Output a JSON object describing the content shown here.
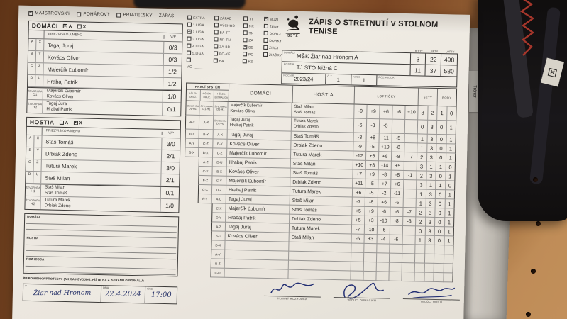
{
  "scene": {
    "tag_text": "Tréner"
  },
  "form": {
    "type_row": {
      "options": [
        {
          "label": "MAJSTROVSKÝ",
          "checked": true
        },
        {
          "label": "POHÁROVÝ",
          "checked": false
        },
        {
          "label": "PRIATEĽSKÝ",
          "checked": false
        }
      ],
      "suffix": "ZÁPAS"
    },
    "brand": {
      "org": "SSTZ",
      "title": "ZÁPIS O STRETNUTÍ V STOLNOM TENISE"
    },
    "league": {
      "columns": [
        [
          {
            "label": "EXTRA",
            "checked": false
          },
          {
            "label": "1.LIGA",
            "checked": false
          },
          {
            "label": "2.LIGA",
            "checked": true
          },
          {
            "label": "3.LIGA",
            "checked": false
          },
          {
            "label": "4.LIGA",
            "checked": false
          },
          {
            "label": "5.LIGA",
            "checked": false
          },
          {
            "label": "",
            "checked": false
          }
        ],
        [
          {
            "label": "ZÁPAD",
            "checked": false
          },
          {
            "label": "VÝCHOD",
            "checked": false
          },
          {
            "label": "BA-TT",
            "checked": false
          },
          {
            "label": "NR-TN",
            "checked": false
          },
          {
            "label": "ZA-BB",
            "checked": false
          },
          {
            "label": "PO-KE",
            "checked": false
          },
          {
            "label": "BA",
            "checked": false
          }
        ],
        [
          {
            "label": "TT",
            "checked": false
          },
          {
            "label": "NR",
            "checked": false
          },
          {
            "label": "TN",
            "checked": false
          },
          {
            "label": "ZA",
            "checked": false
          },
          {
            "label": "BB",
            "checked": true
          },
          {
            "label": "PO",
            "checked": false
          },
          {
            "label": "KE",
            "checked": false
          }
        ],
        [
          {
            "label": "MUŽI",
            "checked": true
          },
          {
            "label": "ŽENY",
            "checked": false
          },
          {
            "label": "DORCI",
            "checked": false
          },
          {
            "label": "DORKY",
            "checked": false
          },
          {
            "label": "ŽIACI",
            "checked": false
          },
          {
            "label": "ŽIAČKY",
            "checked": false
          }
        ]
      ],
      "mo_label": "MO"
    },
    "summary": {
      "score_headers": [
        "BODY",
        "SETY",
        "LOPTY"
      ],
      "teams": [
        {
          "side_label": "DOMÁCI",
          "name": "MŠK Žiar nad Hronom A",
          "body": "3",
          "sety": "22",
          "lopty": "498"
        },
        {
          "side_label": "HOSTIA",
          "name": "TJ STO Nižná C",
          "body": "11",
          "sety": "37",
          "lopty": "580"
        }
      ],
      "season": {
        "label": "ROČNÍK",
        "value": "2023/24"
      },
      "match_no": {
        "label": "Č.Z.",
        "value": "1"
      },
      "round": {
        "label": "KOLO",
        "value": "1"
      },
      "referee": {
        "label": "ROZHODCA",
        "value": ""
      }
    },
    "home_panel": {
      "title": "DOMÁCI",
      "box_a": {
        "label": "A",
        "checked": true
      },
      "box_x": {
        "label": "X",
        "checked": false
      },
      "name_header": "PRIEZVISKO A MENO",
      "vp_header": "V/P",
      "players": [
        {
          "c1": "A",
          "c2": "X",
          "name": "Tagaj Juraj",
          "vp": "0/3"
        },
        {
          "c1": "B",
          "c2": "Y",
          "name": "Kovács Oliver",
          "vp": "0/3"
        },
        {
          "c1": "C",
          "c2": "Z",
          "name": "Majerčík Ľubomír",
          "vp": "1/2"
        },
        {
          "c1": "D",
          "c2": "U",
          "name": "Hrabaj Patrik",
          "vp": "1/2"
        }
      ],
      "doubles": [
        {
          "label": "ŠTVORHRA",
          "code": "D1",
          "names": [
            "Majerčík Ľubomír",
            "Kovács Oliver"
          ],
          "vp": "1/0"
        },
        {
          "label": "ŠTVORHRA",
          "code": "D2",
          "names": [
            "Tagaj Juraj",
            "Hrabaj Patrik"
          ],
          "vp": "0/1"
        }
      ]
    },
    "away_panel": {
      "title": "HOSTIA",
      "box_a": {
        "label": "A",
        "checked": false
      },
      "box_x": {
        "label": "X",
        "checked": true
      },
      "name_header": "PRIEZVISKO A MENO",
      "vp_header": "V/P",
      "players": [
        {
          "c1": "A",
          "c2": "X",
          "name": "Staš Tomáš",
          "vp": "3/0"
        },
        {
          "c1": "B",
          "c2": "Y",
          "name": "Drbiak Zdeno",
          "vp": "2/1"
        },
        {
          "c1": "C",
          "c2": "Z",
          "name": "Tutura Marek",
          "vp": "3/0"
        },
        {
          "c1": "D",
          "c2": "U",
          "name": "Staš Milan",
          "vp": "2/1"
        }
      ],
      "doubles": [
        {
          "label": "ŠTVORHRA",
          "code": "H1",
          "names": [
            "Staš Milan",
            "Staš Tomáš"
          ],
          "vp": "0/1"
        },
        {
          "label": "ŠTVORHRA",
          "code": "H2",
          "names": [
            "Tutura Marek",
            "Drbiak Zdeno"
          ],
          "vp": "1/0"
        }
      ]
    },
    "grid": {
      "system_header": "HRACÍ SYSTÉM",
      "system_columns": [
        "3-ČLEN. DRUŽ.",
        "4-ČLEN. DRUŽ.",
        "4-ČLEN. EXTRALIGA"
      ],
      "home_header": "DOMÁCI",
      "away_header": "HOSTIA",
      "balls_header": "LOPTIČKY",
      "sets_header": "SETY",
      "points_header": "BODY",
      "rows": [
        {
          "sys": [
            "ŠTVORHRA D1-H1",
            "ŠTVORHRA D1-H1",
            "ŠTVORHRA D1-H1"
          ],
          "home": [
            "Majerčík Ľubomír",
            "Kovács Oliver"
          ],
          "away": [
            "Staš Milan",
            "Staš Tomáš"
          ],
          "balls": [
            "-9",
            "+9",
            "+6",
            "-6",
            "+10"
          ],
          "sets": [
            "3",
            "2"
          ],
          "points": [
            "1",
            "0"
          ]
        },
        {
          "sys": [
            "A-X",
            "A-X",
            "ŠTVORHRA D2-H2"
          ],
          "home": [
            "Tagaj Juraj",
            "Hrabaj Patrik"
          ],
          "away": [
            "Tutura Marek",
            "Drbiak Zdeno"
          ],
          "balls": [
            "-6",
            "-3",
            "-5",
            "",
            ""
          ],
          "sets": [
            "0",
            "3"
          ],
          "points": [
            "0",
            "1"
          ]
        },
        {
          "sys": [
            "B-Y",
            "B-Y",
            "A-X"
          ],
          "home": "Tagaj Juraj",
          "away": "Staš Tomáš",
          "balls": [
            "-3",
            "+8",
            "-11",
            "-5",
            ""
          ],
          "sets": [
            "1",
            "3"
          ],
          "points": [
            "0",
            "1"
          ]
        },
        {
          "sys": [
            "A-Y",
            "C-Z",
            "B-Y"
          ],
          "home": "Kovács Oliver",
          "away": "Drbiak Zdeno",
          "balls": [
            "-9",
            "-5",
            "+10",
            "-8",
            ""
          ],
          "sets": [
            "1",
            "3"
          ],
          "points": [
            "0",
            "1"
          ]
        },
        {
          "sys": [
            "B-X",
            "B-X",
            "C-Z"
          ],
          "home": "Majerčík Ľubomír",
          "away": "Tutura Marek",
          "balls": [
            "-12",
            "+8",
            "+8",
            "-8",
            "-7"
          ],
          "sets": [
            "2",
            "3"
          ],
          "points": [
            "0",
            "1"
          ]
        },
        {
          "sys": [
            null,
            "A-Z",
            "D-U"
          ],
          "home": "Hrabaj Patrik",
          "away": "Staš Milan",
          "balls": [
            "+10",
            "+8",
            "-14",
            "+5",
            ""
          ],
          "sets": [
            "3",
            "1"
          ],
          "points": [
            "1",
            "0"
          ]
        },
        {
          "sys": [
            null,
            "C-Y",
            "B-X"
          ],
          "home": "Kovács Oliver",
          "away": "Staš Tomáš",
          "balls": [
            "+7",
            "+9",
            "-8",
            "-8",
            "-1"
          ],
          "sets": [
            "2",
            "3"
          ],
          "points": [
            "0",
            "1"
          ]
        },
        {
          "sys": [
            null,
            "B-Z",
            "C-Y"
          ],
          "home": "Majerčík Ľubomír",
          "away": "Drbiak Zdeno",
          "balls": [
            "+11",
            "-5",
            "+7",
            "+6",
            ""
          ],
          "sets": [
            "3",
            "1"
          ],
          "points": [
            "1",
            "0"
          ]
        },
        {
          "sys": [
            null,
            "C-X",
            "D-Z"
          ],
          "home": "Hrabaj Patrik",
          "away": "Tutura Marek",
          "balls": [
            "+6",
            "-5",
            "-2",
            "-11",
            ""
          ],
          "sets": [
            "1",
            "3"
          ],
          "points": [
            "0",
            "1"
          ]
        },
        {
          "sys": [
            null,
            "A-Y",
            "A-U"
          ],
          "home": "Tagaj Juraj",
          "away": "Staš Milan",
          "balls": [
            "-7",
            "-8",
            "+6",
            "-6",
            ""
          ],
          "sets": [
            "1",
            "3"
          ],
          "points": [
            "0",
            "1"
          ]
        },
        {
          "sys": [
            null,
            null,
            "C-X"
          ],
          "home": "Majerčík Ľubomír",
          "away": "Staš Tomáš",
          "balls": [
            "+5",
            "+9",
            "-6",
            "-6",
            "-7"
          ],
          "sets": [
            "2",
            "3"
          ],
          "points": [
            "0",
            "1"
          ]
        },
        {
          "sys": [
            null,
            null,
            "D-Y"
          ],
          "home": "Hrabaj Patrik",
          "away": "Drbiak Zdeno",
          "balls": [
            "+5",
            "+3",
            "-10",
            "-8",
            "-3"
          ],
          "sets": [
            "2",
            "3"
          ],
          "points": [
            "0",
            "1"
          ]
        },
        {
          "sys": [
            null,
            null,
            "A-Z"
          ],
          "home": "Tagaj Juraj",
          "away": "Tutura Marek",
          "balls": [
            "-7",
            "-10",
            "-6",
            "",
            ""
          ],
          "sets": [
            "0",
            "3"
          ],
          "points": [
            "0",
            "1"
          ]
        },
        {
          "sys": [
            null,
            null,
            "B-U"
          ],
          "home": "Kovács Oliver",
          "away": "Staš Milan",
          "balls": [
            "-6",
            "+3",
            "-4",
            "-6",
            ""
          ],
          "sets": [
            "1",
            "3"
          ],
          "points": [
            "0",
            "1"
          ]
        },
        {
          "sys": [
            null,
            null,
            "D-X"
          ],
          "home": "",
          "away": "",
          "balls": [
            "",
            "",
            "",
            "",
            ""
          ],
          "sets": [
            "",
            ""
          ],
          "points": [
            "",
            ""
          ]
        },
        {
          "sys": [
            null,
            null,
            "A-Y"
          ],
          "home": "",
          "away": "",
          "balls": [
            "",
            "",
            "",
            "",
            ""
          ],
          "sets": [
            "",
            ""
          ],
          "points": [
            "",
            ""
          ]
        },
        {
          "sys": [
            null,
            null,
            "B-Z"
          ],
          "home": "",
          "away": "",
          "balls": [
            "",
            "",
            "",
            "",
            ""
          ],
          "sets": [
            "",
            ""
          ],
          "points": [
            "",
            ""
          ]
        },
        {
          "sys": [
            null,
            null,
            "C-U"
          ],
          "home": "",
          "away": "",
          "balls": [
            "",
            "",
            "",
            "",
            ""
          ],
          "sets": [
            "",
            ""
          ],
          "points": [
            "",
            ""
          ]
        }
      ]
    },
    "notes": {
      "home_label": "DOMÁCI",
      "away_label": "HOSTIA",
      "referee_label": "ROZHODCA"
    },
    "remarks": "PRIPOMIENKY/PROTESTY (AK SA NEVOJDÚ, PÍŠTE NA 2. STRANU ORIGINÁLU)",
    "footer": {
      "place": {
        "label": "V",
        "value": "Žiar nad Hronom"
      },
      "date": {
        "label": "DŇA",
        "value": "22.4.2024"
      },
      "time": {
        "label": "ČAS",
        "value": "17:00"
      },
      "signatures": [
        "HLAVNÝ ROZHODCA",
        "VEDÚCI DOMÁCICH",
        "VEDÚCI HOSTÍ"
      ]
    }
  }
}
